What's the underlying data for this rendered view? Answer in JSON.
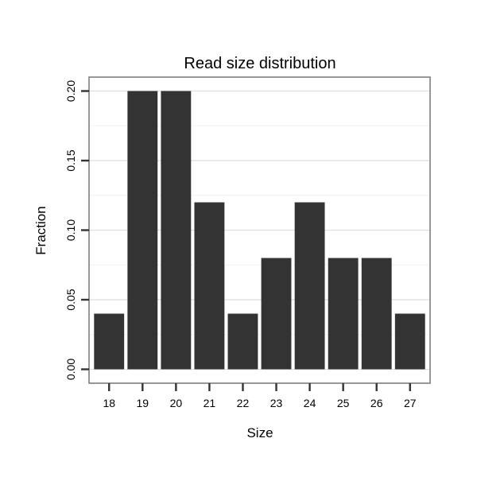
{
  "chart_data": {
    "type": "bar",
    "title": "Read size distribution",
    "xlabel": "Size",
    "ylabel": "Fraction",
    "categories": [
      "18",
      "19",
      "20",
      "21",
      "22",
      "23",
      "24",
      "25",
      "26",
      "27"
    ],
    "values": [
      0.04,
      0.2,
      0.2,
      0.12,
      0.04,
      0.08,
      0.12,
      0.08,
      0.08,
      0.04
    ],
    "y_ticks": {
      "values": [
        0.0,
        0.05,
        0.1,
        0.15,
        0.2
      ],
      "labels": [
        "0.00",
        "0.05",
        "0.10",
        "0.15",
        "0.20"
      ]
    },
    "ylim": [
      0,
      0.21
    ],
    "grid": "on",
    "legend": "none",
    "colors": {
      "bar": "#333333",
      "panel_border": "#7f7f7f",
      "grid_major": "#dedede",
      "grid_minor": "#f0f0f0",
      "panel_background": "#ffffff",
      "tick_mark": "#333333",
      "text": "#000000"
    }
  }
}
